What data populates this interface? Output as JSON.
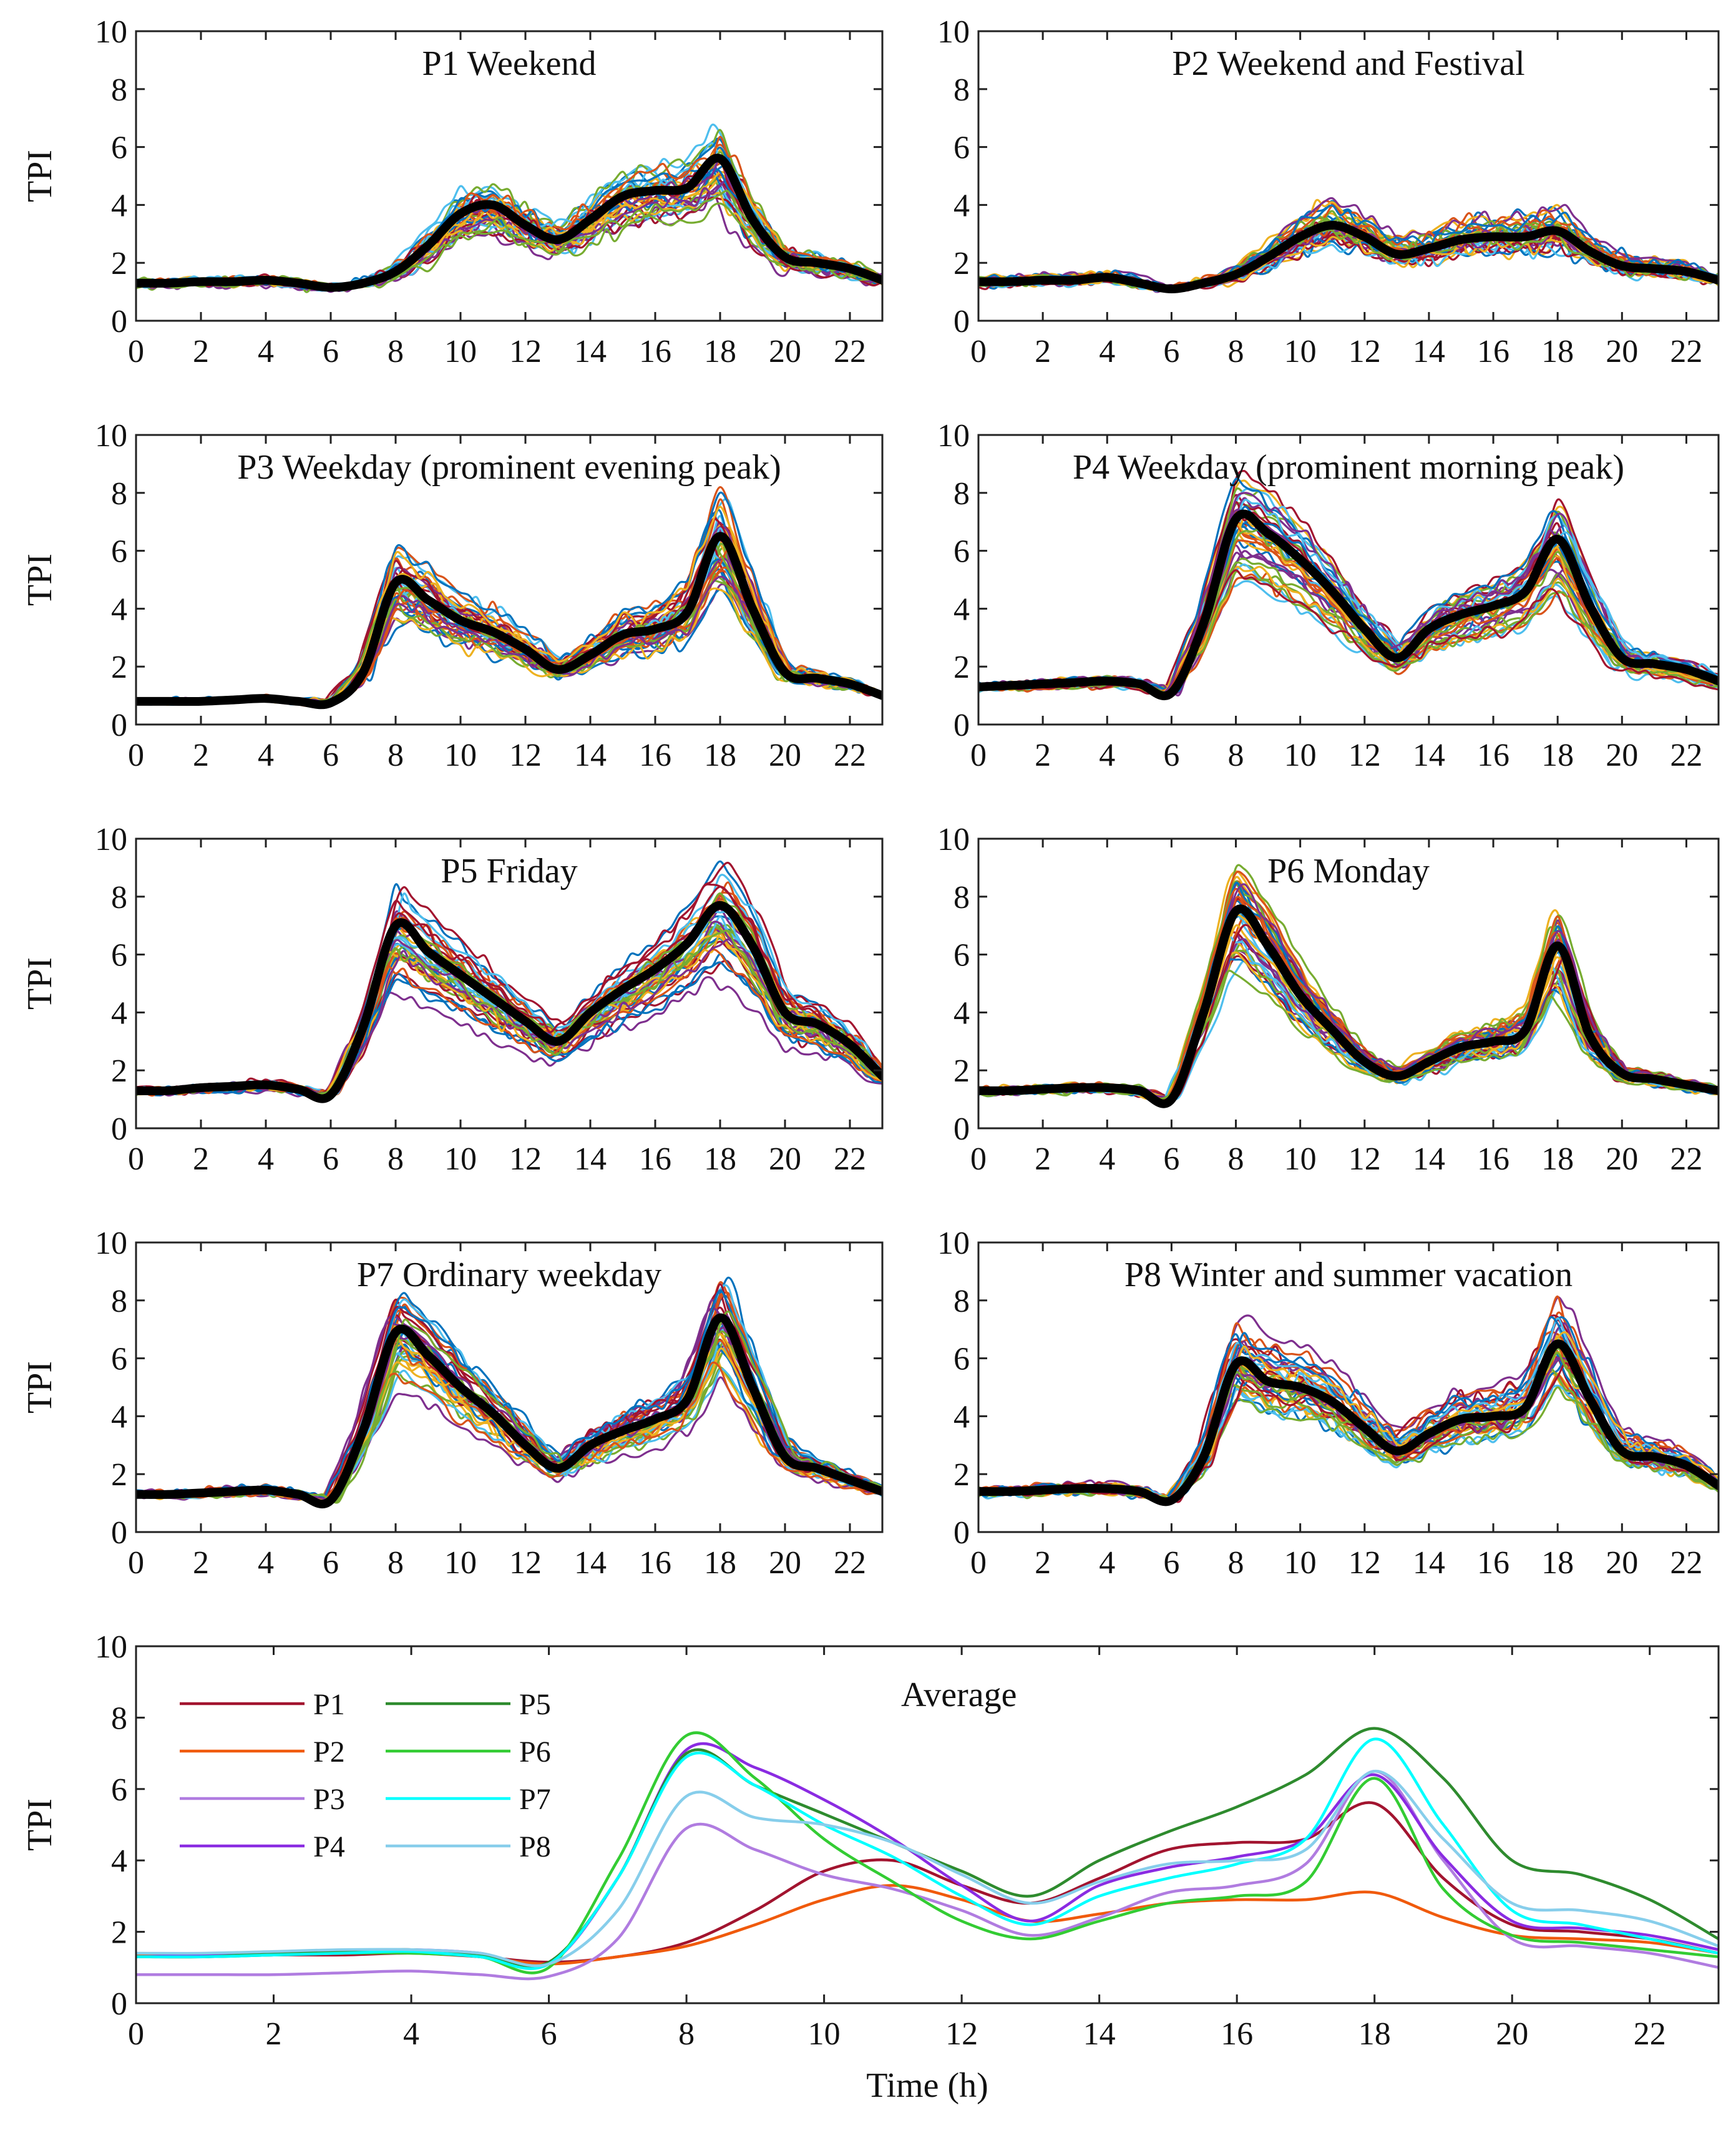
{
  "colors": {
    "avg_line": "#000000",
    "palette": [
      "#0072BD",
      "#D95319",
      "#EDB120",
      "#7E2F8E",
      "#77AC30",
      "#4DBEEE",
      "#A2142F"
    ],
    "legend": {
      "P1": "#A2142F",
      "P2": "#F05A0C",
      "P3": "#B07CE0",
      "P4": "#8A2BE2",
      "P5": "#2E8B2E",
      "P6": "#33CC33",
      "P7": "#00FFFF",
      "P8": "#87CEEB"
    }
  },
  "chart_data": [
    {
      "type": "line",
      "title": "P1 Weekend",
      "ylabel": "TPI",
      "xlabel": "",
      "xlim": [
        0,
        23
      ],
      "ylim": [
        0,
        10
      ],
      "xticks": [
        "0",
        "2",
        "4",
        "6",
        "8",
        "10",
        "12",
        "14",
        "16",
        "18",
        "20",
        "22"
      ],
      "yticks": [
        "0",
        "2",
        "4",
        "6",
        "8",
        "10"
      ],
      "x": [
        0,
        1,
        2,
        3,
        4,
        5,
        6,
        7,
        8,
        9,
        10,
        11,
        12,
        13,
        14,
        15,
        16,
        17,
        18,
        19,
        20,
        21,
        22,
        23
      ],
      "mean": [
        1.3,
        1.3,
        1.35,
        1.35,
        1.4,
        1.3,
        1.15,
        1.3,
        1.7,
        2.6,
        3.7,
        4.0,
        3.3,
        2.8,
        3.5,
        4.3,
        4.5,
        4.6,
        5.6,
        3.5,
        2.2,
        2.0,
        1.8,
        1.4
      ],
      "sample_count": 40,
      "spread": 0.45
    },
    {
      "type": "line",
      "title": "P2 Weekend and Festival",
      "ylabel": "",
      "xlabel": "",
      "xlim": [
        0,
        23
      ],
      "ylim": [
        0,
        10
      ],
      "xticks": [
        "0",
        "2",
        "4",
        "6",
        "8",
        "10",
        "12",
        "14",
        "16",
        "18",
        "20",
        "22"
      ],
      "yticks": [
        "0",
        "2",
        "4",
        "6",
        "8",
        "10"
      ],
      "x": [
        0,
        1,
        2,
        3,
        4,
        5,
        6,
        7,
        8,
        9,
        10,
        11,
        12,
        13,
        14,
        15,
        16,
        17,
        18,
        19,
        20,
        21,
        22,
        23
      ],
      "mean": [
        1.35,
        1.35,
        1.4,
        1.4,
        1.5,
        1.3,
        1.1,
        1.3,
        1.6,
        2.2,
        2.9,
        3.3,
        2.9,
        2.3,
        2.5,
        2.8,
        2.9,
        2.9,
        3.1,
        2.4,
        1.9,
        1.8,
        1.7,
        1.4
      ],
      "sample_count": 40,
      "spread": 0.45
    },
    {
      "type": "line",
      "title": "P3 Weekday (prominent evening peak)",
      "ylabel": "TPI",
      "xlabel": "",
      "xlim": [
        0,
        23
      ],
      "ylim": [
        0,
        10
      ],
      "xticks": [
        "0",
        "2",
        "4",
        "6",
        "8",
        "10",
        "12",
        "14",
        "16",
        "18",
        "20",
        "22"
      ],
      "yticks": [
        "0",
        "2",
        "4",
        "6",
        "8",
        "10"
      ],
      "x": [
        0,
        1,
        2,
        3,
        4,
        5,
        6,
        7,
        8,
        9,
        10,
        11,
        12,
        13,
        14,
        15,
        16,
        17,
        18,
        19,
        20,
        21,
        22,
        23
      ],
      "mean": [
        0.8,
        0.8,
        0.8,
        0.85,
        0.9,
        0.8,
        0.75,
        1.8,
        4.9,
        4.3,
        3.6,
        3.2,
        2.6,
        1.9,
        2.4,
        3.1,
        3.3,
        3.9,
        6.5,
        4.0,
        1.8,
        1.6,
        1.4,
        1.0
      ],
      "sample_count": 40,
      "spread": 0.4
    },
    {
      "type": "line",
      "title": "P4 Weekday (prominent morning peak)",
      "ylabel": "",
      "xlabel": "",
      "xlim": [
        0,
        23
      ],
      "ylim": [
        0,
        10
      ],
      "xticks": [
        "0",
        "2",
        "4",
        "6",
        "8",
        "10",
        "12",
        "14",
        "16",
        "18",
        "20",
        "22"
      ],
      "yticks": [
        "0",
        "2",
        "4",
        "6",
        "8",
        "10"
      ],
      "x": [
        0,
        1,
        2,
        3,
        4,
        5,
        6,
        7,
        8,
        9,
        10,
        11,
        12,
        13,
        14,
        15,
        16,
        17,
        18,
        19,
        20,
        21,
        22,
        23
      ],
      "mean": [
        1.3,
        1.35,
        1.4,
        1.45,
        1.5,
        1.4,
        1.1,
        3.5,
        7.1,
        6.6,
        5.7,
        4.6,
        3.3,
        2.3,
        3.3,
        3.8,
        4.1,
        4.6,
        6.4,
        4.1,
        2.3,
        2.1,
        1.9,
        1.5
      ],
      "sample_count": 40,
      "spread": 0.35
    },
    {
      "type": "line",
      "title": "P5 Friday",
      "ylabel": "TPI",
      "xlabel": "",
      "xlim": [
        0,
        23
      ],
      "ylim": [
        0,
        10
      ],
      "xticks": [
        "0",
        "2",
        "4",
        "6",
        "8",
        "10",
        "12",
        "14",
        "16",
        "18",
        "20",
        "22"
      ],
      "yticks": [
        "0",
        "2",
        "4",
        "6",
        "8",
        "10"
      ],
      "x": [
        0,
        1,
        2,
        3,
        4,
        5,
        6,
        7,
        8,
        9,
        10,
        11,
        12,
        13,
        14,
        15,
        16,
        17,
        18,
        19,
        20,
        21,
        22,
        23
      ],
      "mean": [
        1.3,
        1.3,
        1.4,
        1.45,
        1.5,
        1.35,
        1.15,
        3.5,
        7.0,
        6.1,
        5.3,
        4.5,
        3.7,
        3.0,
        4.0,
        4.8,
        5.5,
        6.4,
        7.7,
        6.3,
        4.0,
        3.6,
        2.9,
        1.8
      ],
      "sample_count": 40,
      "spread": 0.35
    },
    {
      "type": "line",
      "title": "P6 Monday",
      "ylabel": "",
      "xlabel": "",
      "xlim": [
        0,
        23
      ],
      "ylim": [
        0,
        10
      ],
      "xticks": [
        "0",
        "2",
        "4",
        "6",
        "8",
        "10",
        "12",
        "14",
        "16",
        "18",
        "20",
        "22"
      ],
      "yticks": [
        "0",
        "2",
        "4",
        "6",
        "8",
        "10"
      ],
      "x": [
        0,
        1,
        2,
        3,
        4,
        5,
        6,
        7,
        8,
        9,
        10,
        11,
        12,
        13,
        14,
        15,
        16,
        17,
        18,
        19,
        20,
        21,
        22,
        23
      ],
      "mean": [
        1.3,
        1.3,
        1.35,
        1.4,
        1.4,
        1.3,
        1.0,
        4.0,
        7.5,
        6.3,
        4.6,
        3.4,
        2.3,
        1.8,
        2.3,
        2.8,
        3.0,
        3.4,
        6.3,
        3.2,
        1.9,
        1.7,
        1.5,
        1.3
      ],
      "sample_count": 40,
      "spread": 0.35
    },
    {
      "type": "line",
      "title": "P7 Ordinary weekday",
      "ylabel": "TPI",
      "xlabel": "",
      "xlim": [
        0,
        23
      ],
      "ylim": [
        0,
        10
      ],
      "xticks": [
        "0",
        "2",
        "4",
        "6",
        "8",
        "10",
        "12",
        "14",
        "16",
        "18",
        "20",
        "22"
      ],
      "yticks": [
        "0",
        "2",
        "4",
        "6",
        "8",
        "10"
      ],
      "x": [
        0,
        1,
        2,
        3,
        4,
        5,
        6,
        7,
        8,
        9,
        10,
        11,
        12,
        13,
        14,
        15,
        16,
        17,
        18,
        19,
        20,
        21,
        22,
        23
      ],
      "mean": [
        1.3,
        1.3,
        1.35,
        1.4,
        1.45,
        1.3,
        1.1,
        3.5,
        6.9,
        6.1,
        5.0,
        4.1,
        3.0,
        2.2,
        3.0,
        3.5,
        3.9,
        4.6,
        7.4,
        5.0,
        2.6,
        2.2,
        1.8,
        1.4
      ],
      "sample_count": 40,
      "spread": 0.35
    },
    {
      "type": "line",
      "title": "P8 Winter and summer vacation",
      "ylabel": "",
      "xlabel": "",
      "xlim": [
        0,
        23
      ],
      "ylim": [
        0,
        10
      ],
      "xticks": [
        "0",
        "2",
        "4",
        "6",
        "8",
        "10",
        "12",
        "14",
        "16",
        "18",
        "20",
        "22"
      ],
      "yticks": [
        "0",
        "2",
        "4",
        "6",
        "8",
        "10"
      ],
      "x": [
        0,
        1,
        2,
        3,
        4,
        5,
        6,
        7,
        8,
        9,
        10,
        11,
        12,
        13,
        14,
        15,
        16,
        17,
        18,
        19,
        20,
        21,
        22,
        23
      ],
      "mean": [
        1.4,
        1.4,
        1.45,
        1.5,
        1.5,
        1.4,
        1.1,
        2.6,
        5.8,
        5.2,
        5.0,
        4.5,
        3.6,
        2.8,
        3.4,
        3.9,
        4.0,
        4.3,
        6.5,
        4.6,
        2.8,
        2.6,
        2.3,
        1.6
      ],
      "sample_count": 40,
      "spread": 0.4
    },
    {
      "type": "line",
      "title": "Average",
      "ylabel": "TPI",
      "xlabel": "Time (h)",
      "xlim": [
        0,
        23
      ],
      "ylim": [
        0,
        10
      ],
      "xticks": [
        "0",
        "2",
        "4",
        "6",
        "8",
        "10",
        "12",
        "14",
        "16",
        "18",
        "20",
        "22"
      ],
      "yticks": [
        "0",
        "2",
        "4",
        "6",
        "8",
        "10"
      ],
      "x": [
        0,
        1,
        2,
        3,
        4,
        5,
        6,
        7,
        8,
        9,
        10,
        11,
        12,
        13,
        14,
        15,
        16,
        17,
        18,
        19,
        20,
        21,
        22,
        23
      ],
      "series": [
        {
          "name": "P1",
          "values": [
            1.3,
            1.3,
            1.35,
            1.35,
            1.4,
            1.3,
            1.15,
            1.3,
            1.7,
            2.6,
            3.7,
            4.0,
            3.3,
            2.8,
            3.5,
            4.3,
            4.5,
            4.6,
            5.6,
            3.5,
            2.2,
            2.0,
            1.8,
            1.4
          ]
        },
        {
          "name": "P2",
          "values": [
            1.35,
            1.35,
            1.4,
            1.4,
            1.5,
            1.3,
            1.1,
            1.3,
            1.6,
            2.2,
            2.9,
            3.3,
            2.9,
            2.3,
            2.5,
            2.8,
            2.9,
            2.9,
            3.1,
            2.4,
            1.9,
            1.8,
            1.7,
            1.4
          ]
        },
        {
          "name": "P3",
          "values": [
            0.8,
            0.8,
            0.8,
            0.85,
            0.9,
            0.8,
            0.75,
            1.8,
            4.9,
            4.3,
            3.6,
            3.2,
            2.6,
            1.9,
            2.4,
            3.1,
            3.3,
            3.9,
            6.5,
            4.0,
            1.8,
            1.6,
            1.4,
            1.0
          ]
        },
        {
          "name": "P4",
          "values": [
            1.3,
            1.35,
            1.4,
            1.45,
            1.5,
            1.4,
            1.1,
            3.5,
            7.1,
            6.6,
            5.7,
            4.6,
            3.3,
            2.3,
            3.3,
            3.8,
            4.1,
            4.6,
            6.4,
            4.1,
            2.3,
            2.1,
            1.9,
            1.5
          ]
        },
        {
          "name": "P5",
          "values": [
            1.3,
            1.3,
            1.4,
            1.45,
            1.5,
            1.35,
            1.15,
            3.5,
            7.0,
            6.1,
            5.3,
            4.5,
            3.7,
            3.0,
            4.0,
            4.8,
            5.5,
            6.4,
            7.7,
            6.3,
            4.0,
            3.6,
            2.9,
            1.8
          ]
        },
        {
          "name": "P6",
          "values": [
            1.3,
            1.3,
            1.35,
            1.4,
            1.4,
            1.3,
            1.0,
            4.0,
            7.5,
            6.3,
            4.6,
            3.4,
            2.3,
            1.8,
            2.3,
            2.8,
            3.0,
            3.4,
            6.3,
            3.2,
            1.9,
            1.7,
            1.5,
            1.3
          ]
        },
        {
          "name": "P7",
          "values": [
            1.3,
            1.3,
            1.35,
            1.4,
            1.45,
            1.3,
            1.1,
            3.5,
            6.9,
            6.1,
            5.0,
            4.1,
            3.0,
            2.2,
            3.0,
            3.5,
            3.9,
            4.6,
            7.4,
            5.0,
            2.6,
            2.2,
            1.8,
            1.4
          ]
        },
        {
          "name": "P8",
          "values": [
            1.4,
            1.4,
            1.45,
            1.5,
            1.5,
            1.4,
            1.1,
            2.6,
            5.8,
            5.2,
            5.0,
            4.5,
            3.6,
            2.8,
            3.4,
            3.9,
            4.0,
            4.3,
            6.5,
            4.6,
            2.8,
            2.6,
            2.3,
            1.6
          ]
        }
      ],
      "legend": [
        "P1",
        "P2",
        "P3",
        "P4",
        "P5",
        "P6",
        "P7",
        "P8"
      ],
      "legend_position": "top-left"
    }
  ]
}
